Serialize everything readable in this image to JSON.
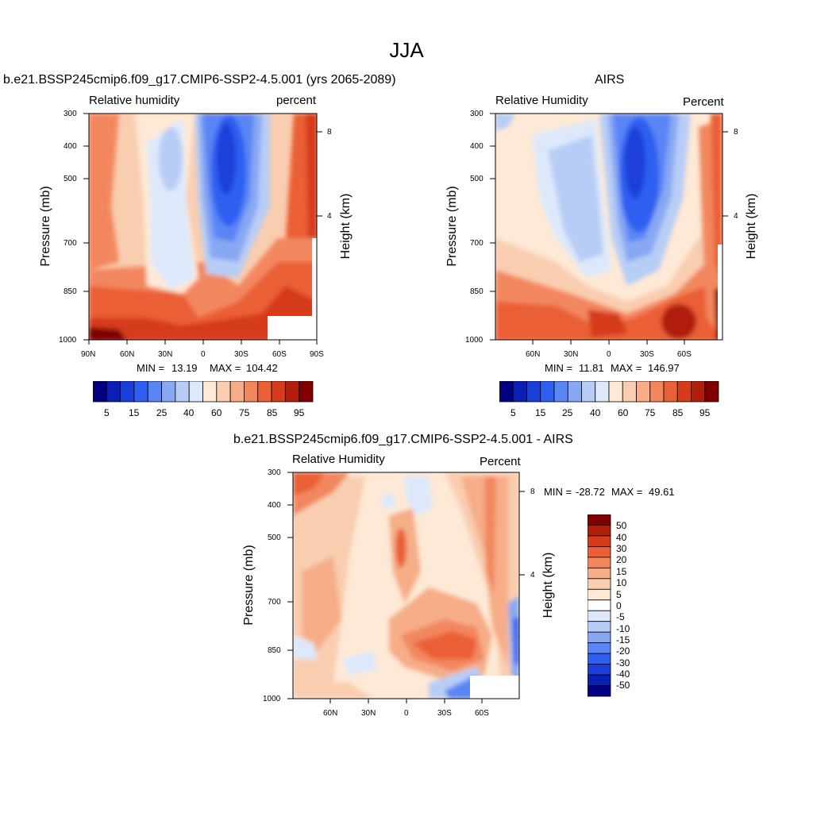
{
  "figure_title": "JJA",
  "chart_data": [
    {
      "type": "heatmap",
      "title": "b.e21.BSSP245cmip6.f09_g17.CMIP6-SSP2-4.5.001 (yrs 2065-2089)",
      "left_string": "Relative humidity",
      "right_string": "percent",
      "ylabel": "Pressure (mb)",
      "ylabel_right": "Height (km)",
      "x_ticks": [
        "90N",
        "60N",
        "30N",
        "0",
        "30S",
        "60S",
        "90S"
      ],
      "y_ticks": [
        "300",
        "400",
        "500",
        "700",
        "850",
        "1000"
      ],
      "height_ticks": [
        "8",
        "4"
      ],
      "min_label": "MIN =",
      "min": "13.19",
      "max_label": "MAX =",
      "max": "104.42",
      "colorbar_labels": [
        "5",
        "15",
        "25",
        "40",
        "60",
        "75",
        "85",
        "95"
      ]
    },
    {
      "type": "heatmap",
      "title": "AIRS",
      "left_string": "Relative Humidity",
      "right_string": "Percent",
      "ylabel": "Pressure (mb)",
      "ylabel_right": "Height (km)",
      "x_ticks": [
        "60N",
        "30N",
        "0",
        "30S",
        "60S"
      ],
      "y_ticks": [
        "300",
        "400",
        "500",
        "700",
        "850",
        "1000"
      ],
      "height_ticks": [
        "8",
        "4"
      ],
      "min_label": "MIN =",
      "min": "11.81",
      "max_label": "MAX =",
      "max": "146.97",
      "colorbar_labels": [
        "5",
        "15",
        "25",
        "40",
        "60",
        "75",
        "85",
        "95"
      ]
    },
    {
      "type": "heatmap",
      "title": "b.e21.BSSP245cmip6.f09_g17.CMIP6-SSP2-4.5.001 - AIRS",
      "left_string": "Relative Humidity",
      "right_string": "Percent",
      "ylabel": "Pressure (mb)",
      "ylabel_right": "Height (km)",
      "x_ticks": [
        "60N",
        "30N",
        "0",
        "30S",
        "60S"
      ],
      "y_ticks": [
        "300",
        "400",
        "500",
        "700",
        "850",
        "1000"
      ],
      "height_ticks": [
        "8",
        "4"
      ],
      "min_label": "MIN =",
      "min": "-28.72",
      "max_label": "MAX =",
      "max": "49.61",
      "colorbar_labels": [
        "50",
        "40",
        "30",
        "20",
        "15",
        "10",
        "5",
        "0",
        "-5",
        "-10",
        "-15",
        "-20",
        "-30",
        "-40",
        "-50"
      ]
    }
  ],
  "colors": {
    "abs_scale": [
      "#000080",
      "#0a1fb5",
      "#1a3fd9",
      "#2f5ff0",
      "#5a85f5",
      "#88a8f3",
      "#b8cdf6",
      "#dde9fb",
      "#fde9d6",
      "#f9cdb0",
      "#f6ad88",
      "#f2875e",
      "#ea5f35",
      "#d63b1b",
      "#b01f0c",
      "#800000"
    ],
    "diff_scale": [
      "#800000",
      "#b01f0c",
      "#d63b1b",
      "#ea5f35",
      "#f2875e",
      "#f6ad88",
      "#f9cdb0",
      "#fde9d6",
      "#ffffff",
      "#dde9fb",
      "#b8cdf6",
      "#88a8f3",
      "#5a85f5",
      "#2f5ff0",
      "#1a3fd9",
      "#0a1fb5",
      "#000080"
    ]
  }
}
